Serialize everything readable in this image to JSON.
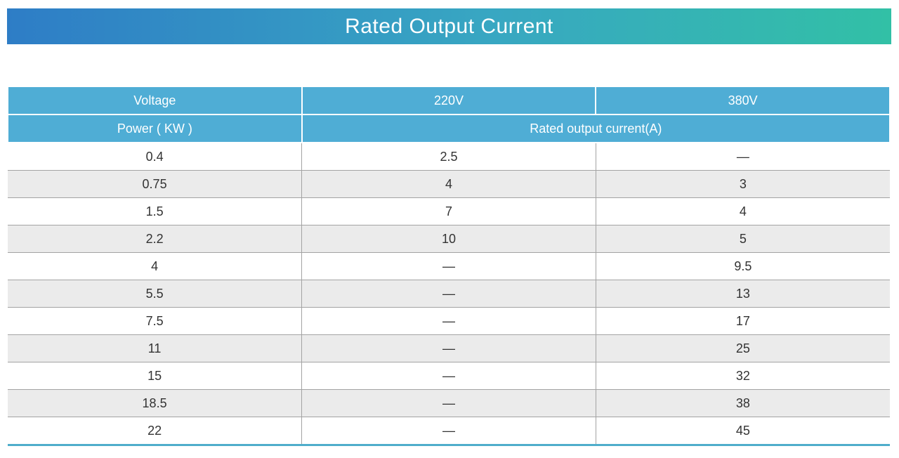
{
  "banner": {
    "title": "Rated Output Current"
  },
  "colors": {
    "banner_gradient_start": "#2e7dc6",
    "banner_gradient_end": "#32c0a6",
    "header_cell_blue": "#4fadd5",
    "stripe_gray": "#ebebeb",
    "row_border_gray": "#a3a3a3",
    "table_bottom_border_blue": "#4fadcb",
    "header_text": "#ffffff",
    "body_text": "#333333"
  },
  "table": {
    "header": {
      "voltage_label": "Voltage",
      "v220_label": "220V",
      "v380_label": "380V",
      "power_label": "Power ( KW )",
      "rated_current_label": "Rated output current(A)"
    },
    "rows": [
      {
        "power": "0.4",
        "a220": "2.5",
        "a380": "—"
      },
      {
        "power": "0.75",
        "a220": "4",
        "a380": "3"
      },
      {
        "power": "1.5",
        "a220": "7",
        "a380": "4"
      },
      {
        "power": "2.2",
        "a220": "10",
        "a380": "5"
      },
      {
        "power": "4",
        "a220": "—",
        "a380": "9.5"
      },
      {
        "power": "5.5",
        "a220": "—",
        "a380": "13"
      },
      {
        "power": "7.5",
        "a220": "—",
        "a380": "17"
      },
      {
        "power": "11",
        "a220": "—",
        "a380": "25"
      },
      {
        "power": "15",
        "a220": "—",
        "a380": "32"
      },
      {
        "power": "18.5",
        "a220": "—",
        "a380": "38"
      },
      {
        "power": "22",
        "a220": "—",
        "a380": "45"
      }
    ]
  }
}
